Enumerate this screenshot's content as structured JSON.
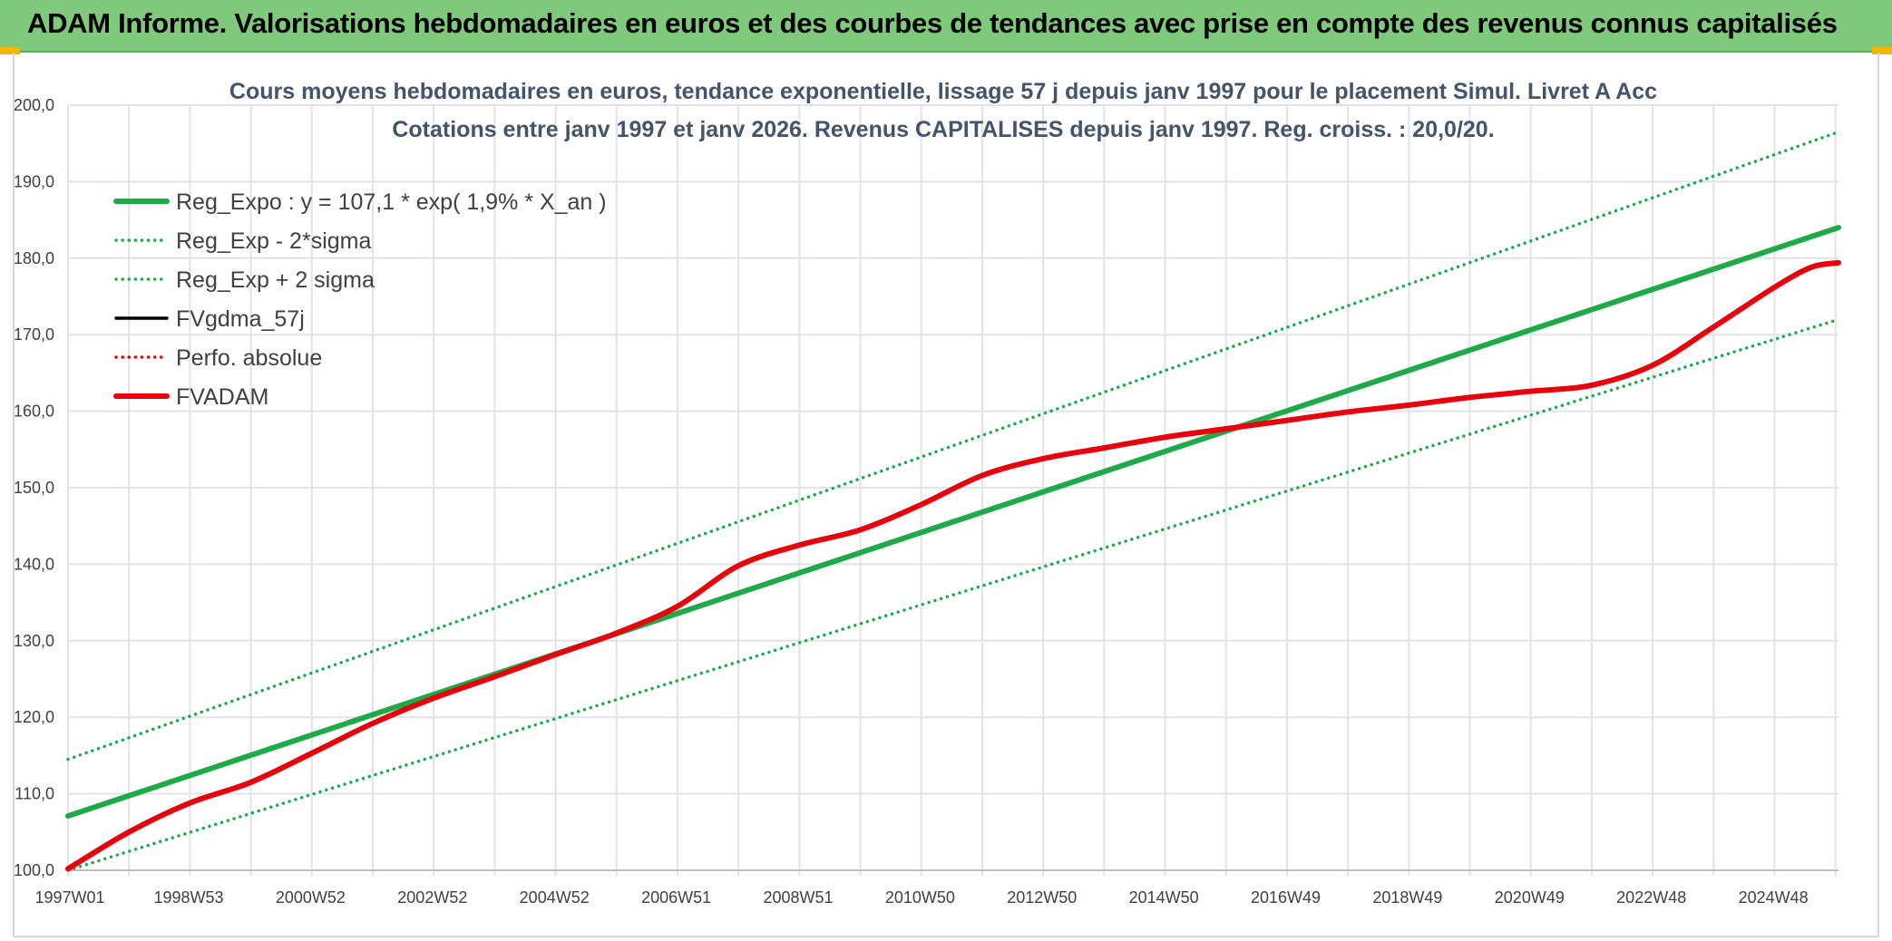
{
  "banner": {
    "title": "ADAM Informe. Valorisations hebdomadaires en euros et des courbes de tendances avec prise en compte des revenus connus capitalisés"
  },
  "colors": {
    "banner_bg": "#7fc97a",
    "trend_green": "#1faa4a",
    "adam_red": "#e8000b",
    "grid": "#e0e4e8",
    "corner_accent": "#f2b705"
  },
  "chart_data": {
    "type": "line",
    "title_lines": [
      "Cours moyens hebdomadaires en euros, tendance exponentielle, lissage 57 j depuis janv 1997 pour le placement Simul. Livret A Acc",
      "Cotations entre janv 1997 et janv 2026. Revenus CAPITALISES depuis janv 1997. Reg. croiss. : 20,0/20."
    ],
    "xlabel": "",
    "ylabel": "",
    "x_tick_labels": [
      "1997W01",
      "1998W53",
      "2000W52",
      "2002W52",
      "2004W52",
      "2006W51",
      "2008W51",
      "2010W50",
      "2012W50",
      "2014W50",
      "2016W49",
      "2018W49",
      "2020W49",
      "2022W48",
      "2024W48"
    ],
    "xlim": [
      1997.0,
      2026.05
    ],
    "ylim": [
      100,
      200
    ],
    "y_ticks": [
      100,
      110,
      120,
      130,
      140,
      150,
      160,
      170,
      180,
      190,
      200
    ],
    "y_tick_labels": [
      "100,0",
      "110,0",
      "120,0",
      "130,0",
      "140,0",
      "150,0",
      "160,0",
      "170,0",
      "180,0",
      "190,0",
      "200,0"
    ],
    "grid": true,
    "legend_position": "top-left",
    "legend": [
      {
        "label": "Reg_Expo : y = 107,1 * exp( 1,9% *  X_an )",
        "color": "#1faa4a",
        "style": "solid-thick"
      },
      {
        "label": "Reg_Exp - 2*sigma",
        "color": "#1faa4a",
        "style": "dotted"
      },
      {
        "label": "Reg_Exp + 2 sigma",
        "color": "#1faa4a",
        "style": "dotted"
      },
      {
        "label": "FVgdma_57j",
        "color": "#000000",
        "style": "solid"
      },
      {
        "label": "Perfo. absolue",
        "color": "#e8000b",
        "style": "dotted"
      },
      {
        "label": "FVADAM",
        "color": "#e8000b",
        "style": "solid-thick"
      }
    ],
    "series": [
      {
        "name": "Reg_Expo : y = 107,1 * exp( 1,9% *  X_an )",
        "x": [
          1997.0,
          2026.05
        ],
        "values": [
          107.1,
          184.0
        ]
      },
      {
        "name": "Reg_Exp - 2*sigma",
        "x": [
          1997.0,
          2026.05
        ],
        "values": [
          100.0,
          172.0
        ]
      },
      {
        "name": "Reg_Exp + 2 sigma",
        "x": [
          1997.0,
          2026.05
        ],
        "values": [
          114.5,
          196.5
        ]
      },
      {
        "name": "FVADAM",
        "x": [
          1997.0,
          1998.0,
          1999.0,
          2000.0,
          2001.0,
          2002.0,
          2003.0,
          2004.0,
          2005.0,
          2006.0,
          2007.0,
          2008.0,
          2009.0,
          2010.0,
          2011.0,
          2012.0,
          2013.0,
          2014.0,
          2015.0,
          2016.0,
          2017.0,
          2018.0,
          2019.0,
          2020.0,
          2021.0,
          2022.0,
          2023.0,
          2024.0,
          2025.0,
          2025.6,
          2026.05
        ],
        "values": [
          100.2,
          105.0,
          108.8,
          111.5,
          115.3,
          119.2,
          122.5,
          125.3,
          128.2,
          131.0,
          134.5,
          139.8,
          142.5,
          144.5,
          147.8,
          151.6,
          153.8,
          155.2,
          156.6,
          157.7,
          158.8,
          159.9,
          160.8,
          161.8,
          162.6,
          163.4,
          166.0,
          171.0,
          176.2,
          178.8,
          179.4
        ]
      }
    ]
  }
}
